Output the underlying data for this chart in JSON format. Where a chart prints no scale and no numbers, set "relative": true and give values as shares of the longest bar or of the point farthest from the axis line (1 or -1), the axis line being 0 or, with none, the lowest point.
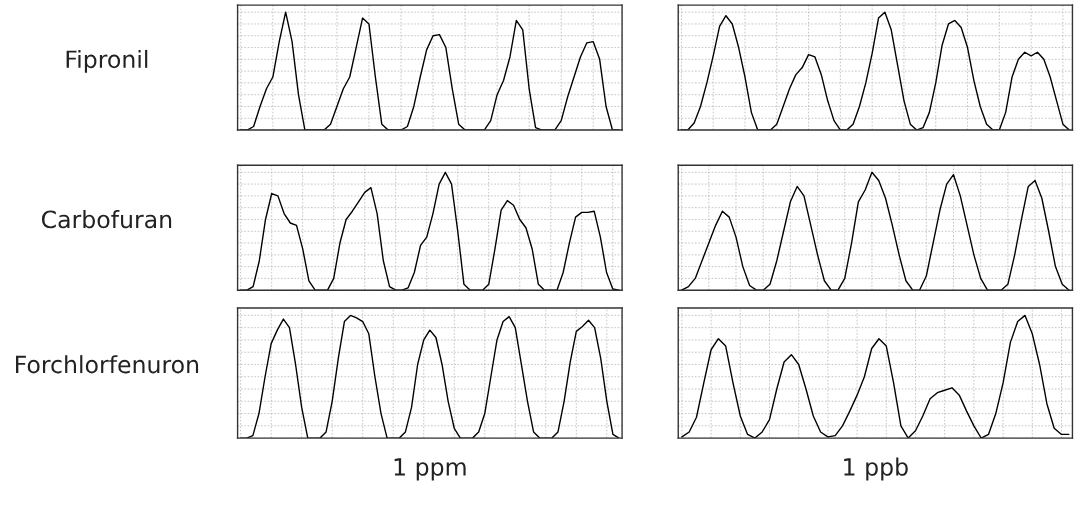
{
  "chart_data": [
    {
      "type": "line",
      "relative": true,
      "ylabel": "Fipronil",
      "grid": true,
      "tick_labels": false,
      "line_style": "solid",
      "categories": [
        null,
        null,
        null,
        null,
        null,
        null,
        null,
        null,
        null,
        null,
        null,
        null,
        null,
        null,
        null,
        null,
        null,
        null,
        null,
        null,
        null,
        null,
        null,
        null,
        null,
        null,
        null,
        null,
        null,
        null,
        null,
        null,
        null,
        null,
        null,
        null,
        null,
        null,
        null,
        null,
        null,
        null,
        null,
        null,
        null,
        null,
        null,
        null,
        null,
        null,
        null,
        null,
        null,
        null,
        null,
        null,
        null,
        null,
        null,
        null
      ],
      "series": [
        {
          "color": "#000000",
          "values": [
            0,
            0,
            0.03,
            0.2,
            0.35,
            0.45,
            0.75,
            1.0,
            0.75,
            0.3,
            0,
            0,
            0,
            0,
            0.05,
            0.2,
            0.35,
            0.45,
            0.7,
            0.95,
            0.9,
            0.45,
            0.05,
            0,
            0,
            0,
            0.03,
            0.2,
            0.45,
            0.68,
            0.8,
            0.81,
            0.7,
            0.35,
            0.05,
            0,
            0,
            0,
            0,
            0.08,
            0.3,
            0.42,
            0.62,
            0.93,
            0.85,
            0.35,
            0.02,
            0,
            0,
            0,
            0.08,
            0.28,
            0.45,
            0.62,
            0.74,
            0.75,
            0.6,
            0.2,
            0,
            0
          ]
        }
      ]
    },
    {
      "type": "line",
      "relative": true,
      "grid": true,
      "tick_labels": false,
      "line_style": "solid",
      "categories": [
        null,
        null,
        null,
        null,
        null,
        null,
        null,
        null,
        null,
        null,
        null,
        null,
        null,
        null,
        null,
        null,
        null,
        null,
        null,
        null,
        null,
        null,
        null,
        null,
        null,
        null,
        null,
        null,
        null,
        null,
        null,
        null,
        null,
        null,
        null,
        null,
        null,
        null,
        null,
        null,
        null,
        null,
        null,
        null,
        null,
        null,
        null,
        null,
        null,
        null,
        null,
        null,
        null,
        null,
        null,
        null,
        null,
        null,
        null,
        null,
        null,
        null
      ],
      "series": [
        {
          "color": "#000000",
          "values": [
            0,
            0,
            0.06,
            0.2,
            0.4,
            0.63,
            0.88,
            0.97,
            0.9,
            0.7,
            0.45,
            0.15,
            0,
            0,
            0,
            0.05,
            0.2,
            0.35,
            0.47,
            0.53,
            0.64,
            0.62,
            0.47,
            0.25,
            0.08,
            0,
            0,
            0.05,
            0.2,
            0.4,
            0.65,
            0.95,
            1.0,
            0.85,
            0.55,
            0.25,
            0.05,
            0,
            0.02,
            0.15,
            0.4,
            0.72,
            0.9,
            0.93,
            0.87,
            0.7,
            0.42,
            0.2,
            0.05,
            0,
            0,
            0.15,
            0.45,
            0.6,
            0.66,
            0.63,
            0.66,
            0.6,
            0.45,
            0.25,
            0.05,
            0
          ]
        }
      ]
    },
    {
      "type": "line",
      "relative": true,
      "ylabel": "Carbofuran",
      "grid": true,
      "tick_labels": false,
      "line_style": "solid",
      "categories": [
        null,
        null,
        null,
        null,
        null,
        null,
        null,
        null,
        null,
        null,
        null,
        null,
        null,
        null,
        null,
        null,
        null,
        null,
        null,
        null,
        null,
        null,
        null,
        null,
        null,
        null,
        null,
        null,
        null,
        null,
        null,
        null,
        null,
        null,
        null,
        null,
        null,
        null,
        null,
        null,
        null,
        null,
        null,
        null,
        null,
        null,
        null,
        null,
        null,
        null,
        null,
        null,
        null,
        null,
        null,
        null,
        null,
        null,
        null,
        null,
        null,
        null
      ],
      "series": [
        {
          "color": "#000000",
          "values": [
            0,
            0,
            0.03,
            0.25,
            0.6,
            0.82,
            0.8,
            0.65,
            0.57,
            0.55,
            0.35,
            0.08,
            0,
            0,
            0,
            0.1,
            0.4,
            0.6,
            0.67,
            0.75,
            0.83,
            0.87,
            0.65,
            0.25,
            0.03,
            0,
            0,
            0.02,
            0.15,
            0.38,
            0.45,
            0.65,
            0.9,
            1.0,
            0.9,
            0.5,
            0.05,
            0,
            0,
            0,
            0.05,
            0.35,
            0.68,
            0.76,
            0.72,
            0.6,
            0.53,
            0.35,
            0.05,
            0,
            0,
            0,
            0.15,
            0.4,
            0.62,
            0.66,
            0.66,
            0.67,
            0.45,
            0.15,
            0.01,
            0
          ]
        }
      ]
    },
    {
      "type": "line",
      "relative": true,
      "grid": true,
      "tick_labels": false,
      "line_style": "solid",
      "categories": [
        null,
        null,
        null,
        null,
        null,
        null,
        null,
        null,
        null,
        null,
        null,
        null,
        null,
        null,
        null,
        null,
        null,
        null,
        null,
        null,
        null,
        null,
        null,
        null,
        null,
        null,
        null,
        null,
        null,
        null,
        null,
        null,
        null,
        null,
        null,
        null,
        null,
        null,
        null,
        null,
        null,
        null,
        null,
        null,
        null,
        null,
        null,
        null,
        null,
        null,
        null,
        null,
        null,
        null,
        null,
        null,
        null,
        null
      ],
      "series": [
        {
          "color": "#000000",
          "values": [
            0,
            0.03,
            0.1,
            0.25,
            0.4,
            0.55,
            0.67,
            0.62,
            0.45,
            0.2,
            0.04,
            0,
            0,
            0.05,
            0.25,
            0.5,
            0.75,
            0.88,
            0.8,
            0.55,
            0.3,
            0.08,
            0,
            0,
            0.1,
            0.4,
            0.75,
            0.85,
            1.0,
            0.93,
            0.78,
            0.55,
            0.3,
            0.08,
            0,
            0,
            0.12,
            0.4,
            0.68,
            0.9,
            0.98,
            0.8,
            0.55,
            0.3,
            0.1,
            0,
            0,
            0,
            0.05,
            0.3,
            0.6,
            0.88,
            0.93,
            0.78,
            0.5,
            0.2,
            0.05,
            0
          ]
        }
      ]
    },
    {
      "type": "line",
      "relative": true,
      "ylabel": "Forchlorfenuron",
      "xlabel": "1 ppm",
      "grid": true,
      "tick_labels": false,
      "line_style": "solid",
      "categories": [
        null,
        null,
        null,
        null,
        null,
        null,
        null,
        null,
        null,
        null,
        null,
        null,
        null,
        null,
        null,
        null,
        null,
        null,
        null,
        null,
        null,
        null,
        null,
        null,
        null,
        null,
        null,
        null,
        null,
        null,
        null,
        null,
        null,
        null,
        null,
        null,
        null,
        null,
        null,
        null,
        null,
        null,
        null,
        null,
        null,
        null,
        null,
        null,
        null,
        null,
        null,
        null,
        null,
        null,
        null,
        null,
        null,
        null,
        null,
        null,
        null,
        null,
        null
      ],
      "series": [
        {
          "color": "#000000",
          "values": [
            0,
            0,
            0.02,
            0.2,
            0.5,
            0.77,
            0.88,
            0.97,
            0.9,
            0.6,
            0.25,
            0,
            0,
            0,
            0.05,
            0.3,
            0.65,
            0.95,
            1.0,
            0.98,
            0.95,
            0.85,
            0.5,
            0.2,
            0,
            0,
            0,
            0.05,
            0.25,
            0.6,
            0.8,
            0.88,
            0.82,
            0.6,
            0.3,
            0.08,
            0,
            0,
            0,
            0.05,
            0.2,
            0.5,
            0.8,
            0.95,
            0.99,
            0.9,
            0.6,
            0.3,
            0.05,
            0,
            0,
            0,
            0.05,
            0.3,
            0.62,
            0.87,
            0.91,
            0.96,
            0.9,
            0.65,
            0.3,
            0.03,
            0
          ]
        }
      ]
    },
    {
      "type": "line",
      "relative": true,
      "xlabel": "1 ppb",
      "grid": true,
      "tick_labels": false,
      "line_style": "solid",
      "categories": [
        null,
        null,
        null,
        null,
        null,
        null,
        null,
        null,
        null,
        null,
        null,
        null,
        null,
        null,
        null,
        null,
        null,
        null,
        null,
        null,
        null,
        null,
        null,
        null,
        null,
        null,
        null,
        null,
        null,
        null,
        null,
        null,
        null,
        null,
        null,
        null,
        null,
        null,
        null,
        null,
        null,
        null,
        null,
        null,
        null,
        null,
        null,
        null,
        null,
        null,
        null,
        null,
        null,
        null
      ],
      "series": [
        {
          "color": "#000000",
          "values": [
            0.01,
            0.05,
            0.17,
            0.45,
            0.72,
            0.81,
            0.75,
            0.45,
            0.18,
            0.03,
            0,
            0.05,
            0.15,
            0.4,
            0.62,
            0.68,
            0.6,
            0.4,
            0.18,
            0.05,
            0.01,
            0.02,
            0.1,
            0.22,
            0.35,
            0.5,
            0.73,
            0.81,
            0.75,
            0.45,
            0.1,
            0,
            0.06,
            0.18,
            0.32,
            0.37,
            0.39,
            0.41,
            0.35,
            0.22,
            0.1,
            0,
            0.03,
            0.2,
            0.45,
            0.78,
            0.95,
            1.0,
            0.85,
            0.6,
            0.28,
            0.08,
            0.03,
            0.03
          ]
        }
      ]
    }
  ]
}
